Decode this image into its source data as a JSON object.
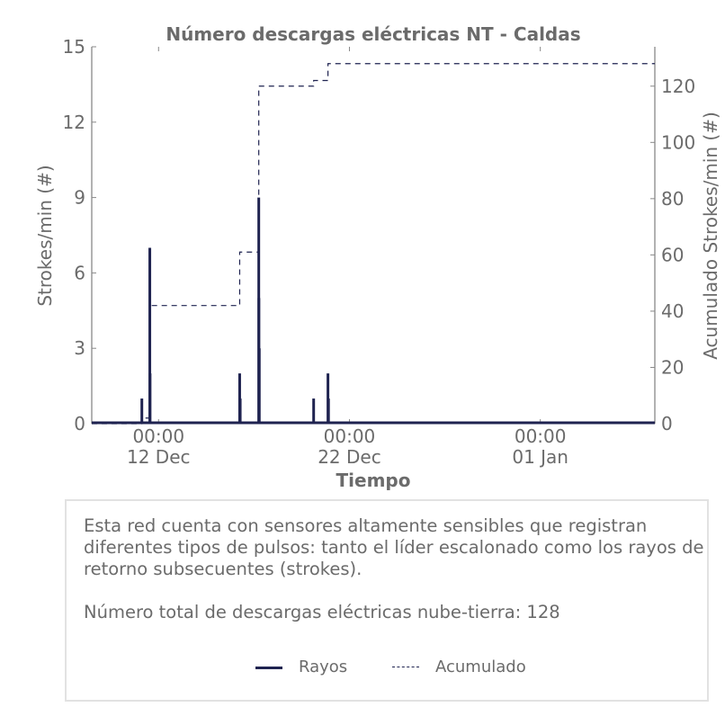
{
  "chart_data": {
    "type": "bar",
    "title": "Número descargas eléctricas NT - Caldas",
    "xlabel": "Tiempo",
    "ylabel": "Strokes/min (#)",
    "y2label": "Acumulado Strokes/min (#)",
    "x_range": [
      "2017-12-08T12:00",
      "2018-01-07T00:00"
    ],
    "ylim": [
      0,
      15
    ],
    "y2lim": [
      0,
      134
    ],
    "yticks": [
      0,
      3,
      6,
      9,
      12,
      15
    ],
    "y2ticks": [
      0,
      20,
      40,
      60,
      80,
      100,
      120
    ],
    "xticks": [
      {
        "x": "2017-12-12T00:00",
        "label1": "00:00",
        "label2": "12 Dec"
      },
      {
        "x": "2017-12-22T00:00",
        "label1": "00:00",
        "label2": "22 Dec"
      },
      {
        "x": "2018-01-01T00:00",
        "label1": "00:00",
        "label2": "01 Jan"
      }
    ],
    "grid": false,
    "legend_position": "bottom",
    "colors": {
      "rayos": "#1f2350",
      "acumulado": "#1f2350",
      "text": "#6b6b6b",
      "axis": "#888888"
    },
    "series": [
      {
        "name": "Rayos",
        "style": "solid",
        "points": [
          {
            "x": "2017-12-11T03:00",
            "y": 1
          },
          {
            "x": "2017-12-11T13:00",
            "y": 7
          },
          {
            "x": "2017-12-11T13:20",
            "y": 2
          },
          {
            "x": "2017-12-16T06:00",
            "y": 2
          },
          {
            "x": "2017-12-16T06:40",
            "y": 1
          },
          {
            "x": "2017-12-17T06:00",
            "y": 9
          },
          {
            "x": "2017-12-17T06:10",
            "y": 5
          },
          {
            "x": "2017-12-17T06:40",
            "y": 3
          },
          {
            "x": "2017-12-20T03:00",
            "y": 1
          },
          {
            "x": "2017-12-20T21:00",
            "y": 2
          },
          {
            "x": "2017-12-20T21:40",
            "y": 1
          }
        ]
      },
      {
        "name": "Acumulado",
        "style": "dashed",
        "steps": [
          {
            "x": "2017-12-08T12:00",
            "y": 0
          },
          {
            "x": "2017-12-11T03:00",
            "y": 2
          },
          {
            "x": "2017-12-11T13:00",
            "y": 42
          },
          {
            "x": "2017-12-16T06:00",
            "y": 61
          },
          {
            "x": "2017-12-17T06:00",
            "y": 120
          },
          {
            "x": "2017-12-20T03:00",
            "y": 122
          },
          {
            "x": "2017-12-20T21:00",
            "y": 128
          }
        ],
        "end_x": "2018-01-07T00:00"
      }
    ]
  },
  "info": {
    "description": "Esta red cuenta con sensores altamente sensibles que registran diferentes tipos de pulsos: tanto el líder escalonado como los rayos de retorno subsecuentes (strokes).",
    "total": "Número total de descargas eléctricas nube-tierra: 128"
  },
  "legend": [
    {
      "label": "Rayos",
      "style": "solid"
    },
    {
      "label": "Acumulado",
      "style": "dashed"
    }
  ]
}
